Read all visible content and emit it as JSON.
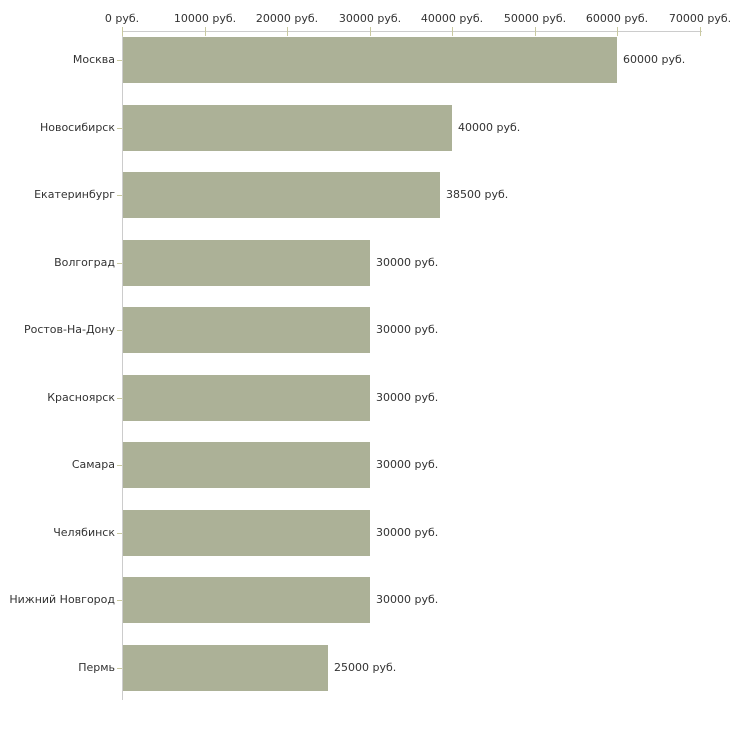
{
  "colors": {
    "bar": "#acb197",
    "axis_line": "#cccccc",
    "tick_mark": "#c9c9a0",
    "text": "#333333",
    "background": "#ffffff"
  },
  "chart_data": {
    "type": "bar",
    "orientation": "horizontal",
    "title": "",
    "xlabel": "",
    "ylabel": "",
    "unit": "руб.",
    "xlim": [
      0,
      70000
    ],
    "grid": false,
    "legend": null,
    "categories": [
      "Москва",
      "Новосибирск",
      "Екатеринбург",
      "Волгоград",
      "Ростов-На-Дону",
      "Красноярск",
      "Самара",
      "Челябинск",
      "Нижний Новгород",
      "Пермь"
    ],
    "values": [
      60000,
      40000,
      38500,
      30000,
      30000,
      30000,
      30000,
      30000,
      30000,
      25000
    ],
    "value_labels": [
      "60000 руб.",
      "40000 руб.",
      "38500 руб.",
      "30000 руб.",
      "30000 руб.",
      "30000 руб.",
      "30000 руб.",
      "30000 руб.",
      "30000 руб.",
      "25000 руб."
    ],
    "x_ticks": [
      0,
      10000,
      20000,
      30000,
      40000,
      50000,
      60000,
      70000
    ],
    "x_tick_labels": [
      "0 руб.",
      "10000 руб.",
      "20000 руб.",
      "30000 руб.",
      "40000 руб.",
      "50000 руб.",
      "60000 руб.",
      "70000 руб."
    ]
  }
}
